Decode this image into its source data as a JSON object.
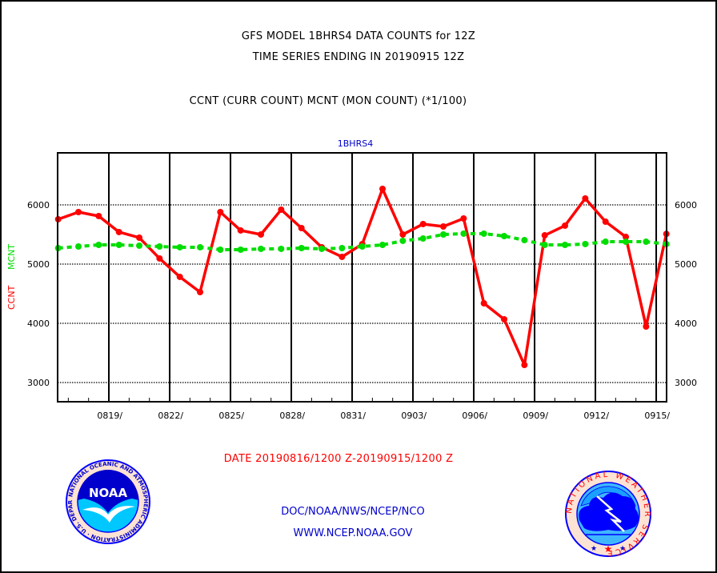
{
  "chart_data": {
    "type": "line",
    "title": "GFS MODEL 1BHRS4 DATA COUNTS for 12Z",
    "subtitle": "TIME SERIES ENDING IN 20190915 12Z",
    "description": "CCNT (CURR COUNT) MCNT (MON COUNT) (*1/100)",
    "panel_label": "1BHRS4",
    "ylabel_parts": [
      {
        "text": "CCNT",
        "color": "#ff0000"
      },
      {
        "text": "MCNT",
        "color": "#00dd00"
      }
    ],
    "xlabel": "DATE 20190816/1200 Z-20190915/1200 Z",
    "ylim": [
      2676,
      6878
    ],
    "yticks": [
      3000,
      4000,
      5000,
      6000
    ],
    "ytick_labels": [
      "3000",
      "4000",
      "5000",
      "6000"
    ],
    "x_start": "0816",
    "x_days_offset_start": 2.5,
    "xtick_labels": [
      "0819/",
      "0822/",
      "0825/",
      "0828/",
      "0831/",
      "0903/",
      "0906/",
      "0909/",
      "0912/",
      "0915/"
    ],
    "x": [
      "0816",
      "0817",
      "0818",
      "0819",
      "0820",
      "0821",
      "0822",
      "0823",
      "0824",
      "0825",
      "0826",
      "0827",
      "0828",
      "0829",
      "0830",
      "0831",
      "0901",
      "0902",
      "0903",
      "0904",
      "0905",
      "0906",
      "0907",
      "0908",
      "0909",
      "0910",
      "0911",
      "0912",
      "0913",
      "0914",
      "0915"
    ],
    "grid": true,
    "series": [
      {
        "name": "CCNT",
        "color": "#ff0000",
        "style": "solid",
        "values": [
          5757,
          5878,
          5811,
          5541,
          5446,
          5095,
          4784,
          4527,
          5878,
          5568,
          5500,
          5919,
          5608,
          5284,
          5122,
          5338,
          6270,
          5500,
          5676,
          5635,
          5770,
          4338,
          4068,
          3297,
          5486,
          5649,
          6108,
          5716,
          5459,
          3946,
          5510
        ]
      },
      {
        "name": "MCNT",
        "color": "#00dd00",
        "style": "dashed",
        "values": [
          5270,
          5297,
          5324,
          5324,
          5311,
          5297,
          5284,
          5284,
          5243,
          5243,
          5257,
          5257,
          5270,
          5257,
          5270,
          5297,
          5324,
          5392,
          5432,
          5500,
          5514,
          5514,
          5473,
          5405,
          5324,
          5324,
          5338,
          5378,
          5378,
          5378,
          5338
        ]
      }
    ]
  },
  "footer": {
    "org_path": "DOC/NOAA/NWS/NCEP/NCO",
    "website": "WWW.NCEP.NOAA.GOV",
    "left_logo": {
      "name": "NOAA",
      "ring_text": "NATIONAL OCEANIC AND ATMOSPHERIC ADMINISTRATION · U.S. DEPARTMENT OF COMMERCE",
      "center_text": "NOAA"
    },
    "right_logo": {
      "name": "NWS",
      "ring_text": "NATIONAL WEATHER SERVICE"
    }
  }
}
